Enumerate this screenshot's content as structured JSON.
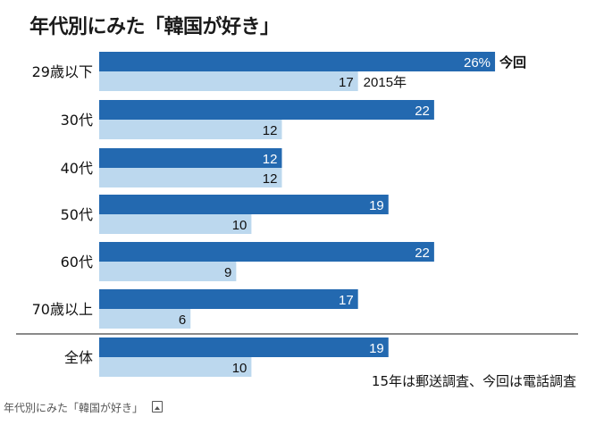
{
  "chart_data": {
    "type": "bar",
    "orientation": "horizontal",
    "title": "年代別にみた「韓国が好き」",
    "categories": [
      "29歳以下",
      "30代",
      "40代",
      "50代",
      "60代",
      "70歳以上",
      "全体"
    ],
    "series": [
      {
        "name": "今回",
        "values": [
          26,
          22,
          12,
          19,
          22,
          17,
          19
        ],
        "color": "#2369b0",
        "labels": [
          "26%",
          "22",
          "12",
          "19",
          "22",
          "17",
          "19"
        ]
      },
      {
        "name": "2015年",
        "values": [
          17,
          12,
          12,
          10,
          9,
          6,
          10
        ],
        "color": "#bcd8ee",
        "labels": [
          "17",
          "12",
          "12",
          "10",
          "9",
          "6",
          "10"
        ]
      }
    ],
    "note": "15年は郵送調査、今回は電話調査",
    "xlim": [
      0,
      30
    ],
    "grid": false,
    "legend": "inline-first-group"
  },
  "caption": "年代別にみた「韓国が好き」",
  "caption_icon": "image-icon"
}
